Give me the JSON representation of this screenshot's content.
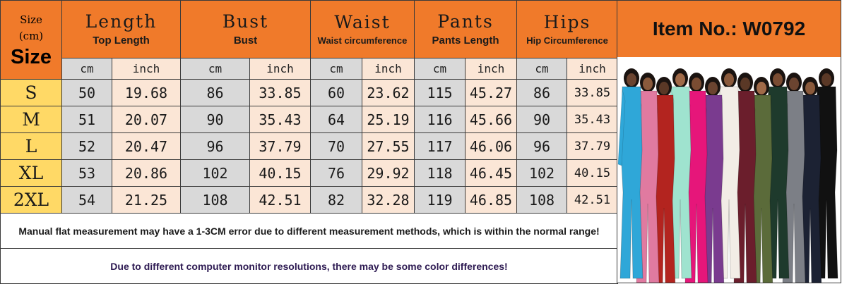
{
  "header": {
    "corner_top": "Size",
    "corner_unit": "(cm)",
    "corner_size": "Size",
    "columns": [
      {
        "title": "Length",
        "subtitle": "Top Length"
      },
      {
        "title": "Bust",
        "subtitle": "Bust"
      },
      {
        "title": "Waist",
        "subtitle": "Waist circumference"
      },
      {
        "title": "Pants",
        "subtitle": "Pants Length"
      },
      {
        "title": "Hips",
        "subtitle": "Hip Circumference"
      }
    ],
    "unit_cm": "cm",
    "unit_inch": "inch"
  },
  "rows": [
    {
      "size": "S",
      "values": [
        "50",
        "19.68",
        "86",
        "33.85",
        "60",
        "23.62",
        "115",
        "45.27",
        "86",
        "33.85"
      ]
    },
    {
      "size": "M",
      "values": [
        "51",
        "20.07",
        "90",
        "35.43",
        "64",
        "25.19",
        "116",
        "45.66",
        "90",
        "35.43"
      ]
    },
    {
      "size": "L",
      "values": [
        "52",
        "20.47",
        "96",
        "37.79",
        "70",
        "27.55",
        "117",
        "46.06",
        "96",
        "37.79"
      ]
    },
    {
      "size": "XL",
      "values": [
        "53",
        "20.86",
        "102",
        "40.15",
        "76",
        "29.92",
        "118",
        "46.45",
        "102",
        "40.15"
      ]
    },
    {
      "size": "2XL",
      "values": [
        "54",
        "21.25",
        "108",
        "42.51",
        "82",
        "32.28",
        "119",
        "46.85",
        "108",
        "42.51"
      ]
    }
  ],
  "notes": {
    "line1": "Manual flat measurement may have a 1-3CM error due to different measurement methods, which is within the normal range!",
    "line2": "Due to different computer monitor resolutions, there may be some color differences!"
  },
  "item_no": "Item No.: W0792",
  "colors": {
    "header_orange": "#f07a2a",
    "size_yellow": "#ffd966",
    "cm_gray": "#d9d9d9",
    "inch_peach": "#fbe6d6"
  },
  "product_colors": [
    "#2fa7d8",
    "#e07aa0",
    "#b3241f",
    "#9fe3cf",
    "#e6167a",
    "#7a3b8f",
    "#f2ede6",
    "#6b1e2c",
    "#5b6b3a",
    "#1e3a2c",
    "#7c7f86",
    "#1c2233",
    "#111111"
  ]
}
